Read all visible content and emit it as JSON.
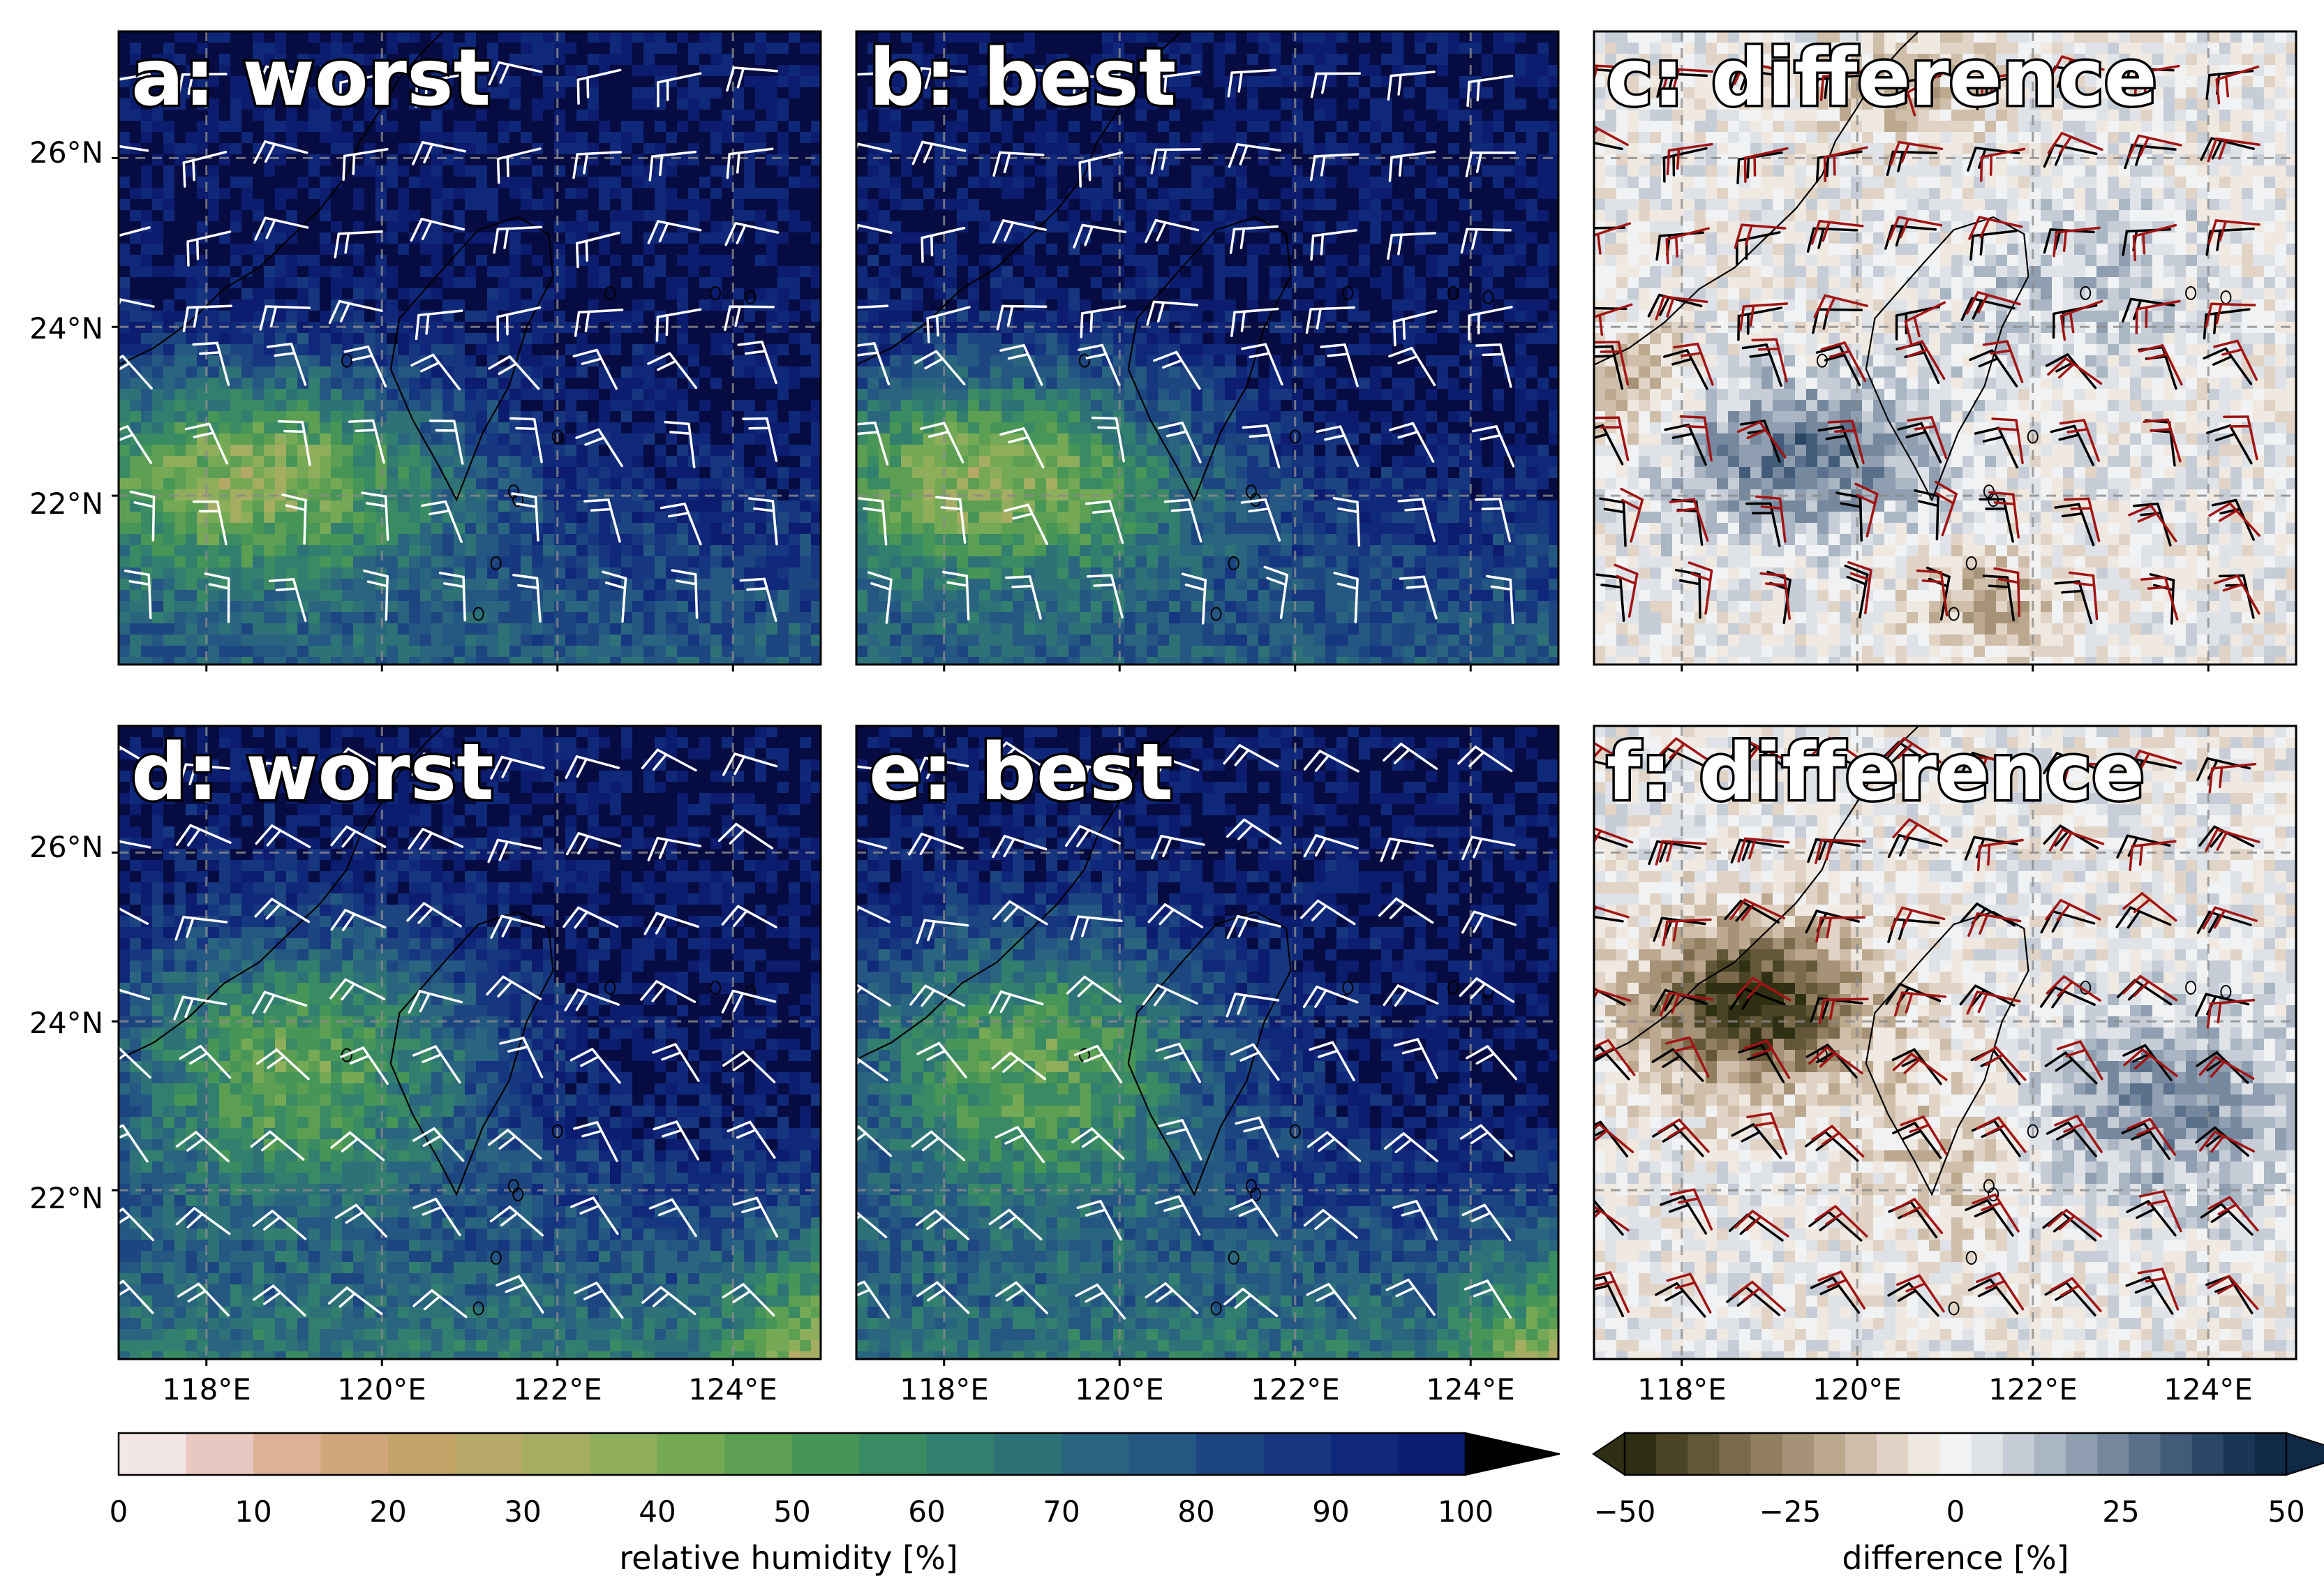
{
  "panels": [
    {
      "id": "a",
      "title": "a: worst",
      "kind": "rh",
      "variant": 0
    },
    {
      "id": "b",
      "title": "b: best",
      "kind": "rh",
      "variant": 1
    },
    {
      "id": "c",
      "title": "c: difference",
      "kind": "diff",
      "variant": 2
    },
    {
      "id": "d",
      "title": "d: worst",
      "kind": "rh",
      "variant": 3
    },
    {
      "id": "e",
      "title": "e: best",
      "kind": "rh",
      "variant": 4
    },
    {
      "id": "f",
      "title": "f: difference",
      "kind": "diff",
      "variant": 5
    }
  ],
  "map": {
    "lon_range": [
      117.0,
      125.0
    ],
    "lat_range": [
      20.0,
      27.5
    ],
    "gridlines": "dashed grey",
    "lon_ticks": [
      {
        "value": 118,
        "label": "118°E"
      },
      {
        "value": 120,
        "label": "120°E"
      },
      {
        "value": 122,
        "label": "122°E"
      },
      {
        "value": 124,
        "label": "124°E"
      }
    ],
    "lat_ticks": [
      {
        "value": 22,
        "label": "22°N"
      },
      {
        "value": 24,
        "label": "24°N"
      },
      {
        "value": 26,
        "label": "26°N"
      }
    ],
    "wind_barb_colors": {
      "rh_panels": "#ffffff",
      "difference_worst": "#000000",
      "difference_best": "#a11414"
    }
  },
  "colorbars": {
    "humidity": {
      "label": "relative humidity [%]",
      "range": [
        0,
        100
      ],
      "extend": "max",
      "ticks": [
        "0",
        "10",
        "20",
        "30",
        "40",
        "50",
        "60",
        "70",
        "80",
        "90",
        "100"
      ],
      "colors": [
        "#f3e7e6",
        "#e8c8c0",
        "#dcb196",
        "#cfa77a",
        "#c3a367",
        "#b6a866",
        "#a4ad62",
        "#8eae5c",
        "#75a955",
        "#5c9f53",
        "#479658",
        "#3a8a63",
        "#327f6f",
        "#2e7278",
        "#2a6580",
        "#255783",
        "#1d4680",
        "#163680",
        "#10287a",
        "#0c1c6e",
        "#060c42"
      ]
    },
    "difference": {
      "label": "difference [%]",
      "range": [
        -50,
        50
      ],
      "extend": "both",
      "ticks": [
        "−50",
        "−25",
        "0",
        "25",
        "50"
      ],
      "colors": [
        "#2f2f13",
        "#4a4426",
        "#625838",
        "#7b6b4c",
        "#917f60",
        "#a69277",
        "#bba88f",
        "#cfbea9",
        "#e1d4c6",
        "#f0e9e2",
        "#f1f2f3",
        "#dfe3e8",
        "#c6cdd6",
        "#aab6c3",
        "#8f9fb1",
        "#75889e",
        "#5b718b",
        "#425b78",
        "#2c4765",
        "#1b3654",
        "#102a45"
      ]
    }
  }
}
